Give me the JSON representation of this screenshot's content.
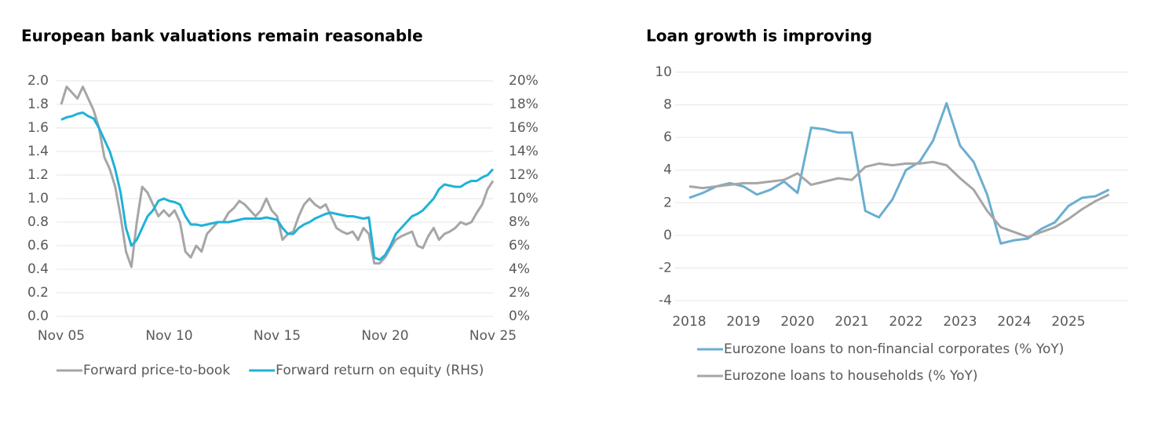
{
  "chart_data": [
    {
      "type": "line",
      "title": "European bank valuations remain reasonable",
      "x": [
        2005.83,
        2006.08,
        2006.33,
        2006.58,
        2006.83,
        2007.08,
        2007.33,
        2007.58,
        2007.83,
        2008.08,
        2008.33,
        2008.58,
        2008.83,
        2009.08,
        2009.33,
        2009.58,
        2009.83,
        2010.08,
        2010.33,
        2010.58,
        2010.83,
        2011.08,
        2011.33,
        2011.58,
        2011.83,
        2012.08,
        2012.33,
        2012.58,
        2012.83,
        2013.08,
        2013.33,
        2013.58,
        2013.83,
        2014.08,
        2014.33,
        2014.58,
        2014.83,
        2015.08,
        2015.33,
        2015.58,
        2015.83,
        2016.08,
        2016.33,
        2016.58,
        2016.83,
        2017.08,
        2017.33,
        2017.58,
        2017.83,
        2018.08,
        2018.33,
        2018.58,
        2018.83,
        2019.08,
        2019.33,
        2019.58,
        2019.83,
        2020.08,
        2020.33,
        2020.58,
        2020.83,
        2021.08,
        2021.33,
        2021.58,
        2021.83,
        2022.08,
        2022.33,
        2022.58,
        2022.83,
        2023.08,
        2023.33,
        2023.58,
        2023.83,
        2024.08,
        2024.33,
        2024.58,
        2024.83,
        2025.08,
        2025.33,
        2025.58,
        2025.83
      ],
      "xlim": [
        2005.83,
        2025.83
      ],
      "xticks": [
        {
          "value": 2005.83,
          "label": "Nov 05"
        },
        {
          "value": 2010.83,
          "label": "Nov 10"
        },
        {
          "value": 2015.83,
          "label": "Nov 15"
        },
        {
          "value": 2020.83,
          "label": "Nov 20"
        },
        {
          "value": 2025.83,
          "label": "Nov 25"
        }
      ],
      "ylim": [
        0,
        2
      ],
      "yticks": [
        {
          "value": 0,
          "label": "0.0"
        },
        0.2,
        0.4,
        0.6,
        0.8,
        {
          "value": 1,
          "label": "1.0"
        },
        1.2,
        1.4,
        1.6,
        1.8,
        {
          "value": 2,
          "label": "2.0"
        }
      ],
      "y2lim": [
        0,
        20
      ],
      "y2ticks": [
        {
          "value": 0,
          "label": "0%"
        },
        {
          "value": 2,
          "label": "2%"
        },
        {
          "value": 4,
          "label": "4%"
        },
        {
          "value": 6,
          "label": "6%"
        },
        {
          "value": 8,
          "label": "8%"
        },
        {
          "value": 10,
          "label": "10%"
        },
        {
          "value": 12,
          "label": "12%"
        },
        {
          "value": 14,
          "label": "14%"
        },
        {
          "value": 16,
          "label": "16%"
        },
        {
          "value": 18,
          "label": "18%"
        },
        {
          "value": 20,
          "label": "20%"
        }
      ],
      "grid": true,
      "legend": "bottom",
      "series": [
        {
          "name": "Forward price-to-book",
          "color": "#a6a6a6",
          "values": [
            1.8,
            1.95,
            1.9,
            1.85,
            1.95,
            1.85,
            1.75,
            1.6,
            1.35,
            1.25,
            1.1,
            0.85,
            0.55,
            0.42,
            0.8,
            1.1,
            1.05,
            0.95,
            0.85,
            0.9,
            0.85,
            0.9,
            0.8,
            0.55,
            0.5,
            0.6,
            0.55,
            0.7,
            0.75,
            0.8,
            0.8,
            0.88,
            0.92,
            0.98,
            0.95,
            0.9,
            0.85,
            0.9,
            1.0,
            0.9,
            0.85,
            0.65,
            0.7,
            0.72,
            0.85,
            0.95,
            1.0,
            0.95,
            0.92,
            0.95,
            0.85,
            0.75,
            0.72,
            0.7,
            0.72,
            0.65,
            0.75,
            0.7,
            0.45,
            0.45,
            0.5,
            0.58,
            0.65,
            0.68,
            0.7,
            0.72,
            0.6,
            0.58,
            0.68,
            0.75,
            0.65,
            0.7,
            0.72,
            0.75,
            0.8,
            0.78,
            0.8,
            0.88,
            0.95,
            1.08,
            1.15
          ]
        },
        {
          "name": "Forward return on equity (RHS)",
          "color": "#1fb2d8",
          "axis": "y2",
          "values": [
            16.7,
            16.9,
            17.0,
            17.2,
            17.3,
            17.0,
            16.8,
            16.0,
            15.0,
            14.0,
            12.5,
            10.5,
            7.5,
            6.0,
            6.5,
            7.5,
            8.5,
            9.0,
            9.8,
            10.0,
            9.8,
            9.7,
            9.5,
            8.5,
            7.8,
            7.8,
            7.7,
            7.8,
            7.9,
            8.0,
            8.0,
            8.0,
            8.1,
            8.2,
            8.3,
            8.3,
            8.3,
            8.3,
            8.4,
            8.3,
            8.2,
            7.5,
            7.0,
            7.0,
            7.5,
            7.8,
            8.0,
            8.3,
            8.5,
            8.7,
            8.8,
            8.7,
            8.6,
            8.5,
            8.5,
            8.4,
            8.3,
            8.4,
            5.0,
            4.8,
            5.2,
            6.0,
            7.0,
            7.5,
            8.0,
            8.5,
            8.7,
            9.0,
            9.5,
            10.0,
            10.8,
            11.2,
            11.1,
            11.0,
            11.0,
            11.3,
            11.5,
            11.5,
            11.8,
            12.0,
            12.5
          ]
        }
      ]
    },
    {
      "type": "line",
      "title": "Loan growth is improving",
      "x": [
        2018,
        2018.25,
        2018.5,
        2018.75,
        2019,
        2019.25,
        2019.5,
        2019.75,
        2020,
        2020.25,
        2020.5,
        2020.75,
        2021,
        2021.25,
        2021.5,
        2021.75,
        2022,
        2022.25,
        2022.5,
        2022.75,
        2023,
        2023.25,
        2023.5,
        2023.75,
        2024,
        2024.25,
        2024.5,
        2024.75,
        2025,
        2025.25,
        2025.5,
        2025.75
      ],
      "xlim": [
        2018,
        2026
      ],
      "xticks": [
        2018,
        2019,
        2020,
        2021,
        2022,
        2023,
        2024,
        2025
      ],
      "ylim": [
        -4,
        10
      ],
      "yticks": [
        -4,
        -2,
        0,
        2,
        4,
        6,
        8,
        10
      ],
      "grid": true,
      "legend": "bottom-left",
      "series": [
        {
          "name": "Eurozone loans to non-financial corporates (% YoY)",
          "color": "#6aaed0",
          "values": [
            2.3,
            2.6,
            3.0,
            3.2,
            3.0,
            2.5,
            2.8,
            3.3,
            2.6,
            6.6,
            6.5,
            6.3,
            6.3,
            1.5,
            1.1,
            2.2,
            4.0,
            4.5,
            5.8,
            8.1,
            5.5,
            4.5,
            2.5,
            -0.5,
            -0.3,
            -0.2,
            0.4,
            0.8,
            1.8,
            2.3,
            2.4,
            2.8
          ]
        },
        {
          "name": "Eurozone loans to households (% YoY)",
          "color": "#a6a6a6",
          "values": [
            3.0,
            2.9,
            3.0,
            3.1,
            3.2,
            3.2,
            3.3,
            3.4,
            3.8,
            3.1,
            3.3,
            3.5,
            3.4,
            4.2,
            4.4,
            4.3,
            4.4,
            4.4,
            4.5,
            4.3,
            3.5,
            2.8,
            1.5,
            0.5,
            0.2,
            -0.1,
            0.2,
            0.5,
            1.0,
            1.6,
            2.1,
            2.5
          ]
        }
      ]
    }
  ]
}
